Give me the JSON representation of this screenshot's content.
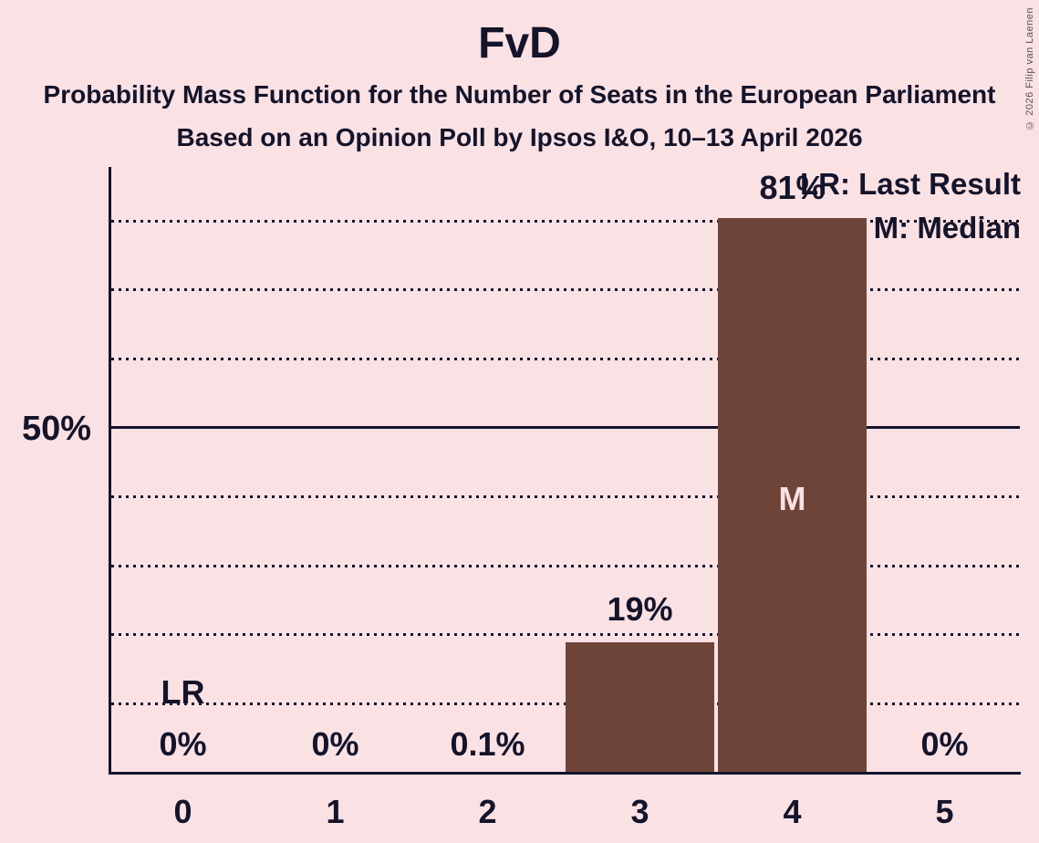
{
  "header": {
    "title": "FvD",
    "subtitle": "Probability Mass Function for the Number of Seats in the European Parliament",
    "poll_line": "Based on an Opinion Poll by Ipsos I&O, 10–13 April 2026"
  },
  "legend": {
    "last_result": "LR: Last Result",
    "median": "M: Median"
  },
  "y_axis": {
    "label_50": "50%"
  },
  "annotations": {
    "last_result_marker": "LR",
    "median_marker": "M"
  },
  "copyright": "© 2026 Filip van Laenen",
  "colors": {
    "background": "#FAE1E4",
    "bar": "#6F4438",
    "ink": "#14142B",
    "median_label": "#FAE1E4",
    "copyright": "#53535F"
  },
  "chart_data": {
    "type": "bar",
    "title": "FvD",
    "categories": [
      "0",
      "1",
      "2",
      "3",
      "4",
      "5"
    ],
    "values": [
      0,
      0,
      0.1,
      19,
      81,
      0
    ],
    "value_labels": [
      "0%",
      "0%",
      "0.1%",
      "19%",
      "81%",
      "0%"
    ],
    "ylim": [
      0,
      88
    ],
    "ytick_labeled_pct": 50,
    "gridlines_pct": [
      10,
      20,
      30,
      40,
      50,
      60,
      70,
      80
    ],
    "solid_gridline_pct": 50,
    "grid": "dotted horizontal",
    "legend_position": "top-right",
    "median_seat": 4,
    "last_result_seat": 0
  }
}
